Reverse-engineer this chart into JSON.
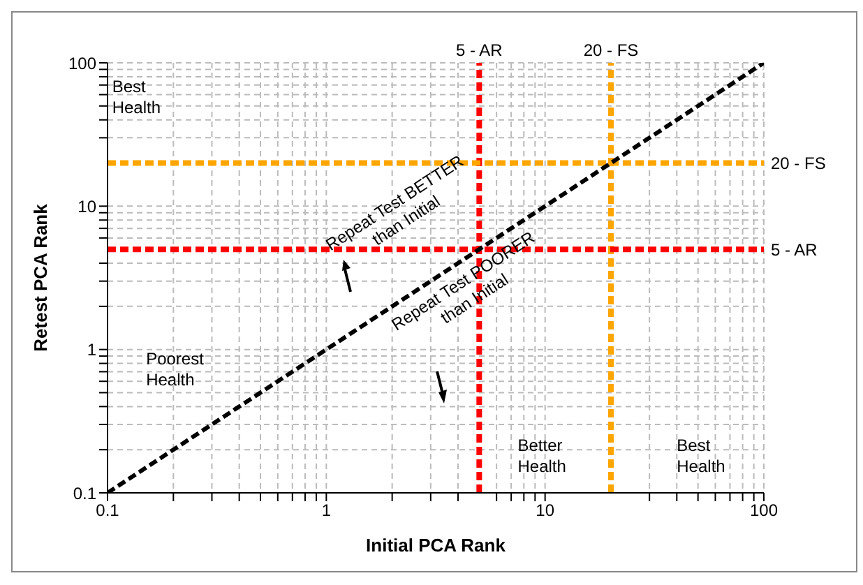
{
  "chart_data": {
    "type": "line",
    "xlabel": "Initial PCA Rank",
    "ylabel": "Retest PCA Rank",
    "log": "xy",
    "grid": true,
    "marker": "none",
    "legend": false,
    "xlim": [
      0.1,
      100
    ],
    "ylim": [
      0.1,
      100
    ],
    "xticks": [
      0.1,
      {
        "value": 0.2,
        "label": null
      },
      {
        "value": 0.3,
        "label": null
      },
      {
        "value": 0.4,
        "label": null
      },
      {
        "value": 0.5,
        "label": null
      },
      {
        "value": 0.6,
        "label": null
      },
      {
        "value": 0.7,
        "label": null
      },
      {
        "value": 0.8,
        "label": null
      },
      {
        "value": 0.9,
        "label": null
      },
      1,
      {
        "value": 2,
        "label": null
      },
      {
        "value": 3,
        "label": null
      },
      {
        "value": 4,
        "label": null
      },
      {
        "value": 6,
        "label": null
      },
      {
        "value": 7,
        "label": null
      },
      {
        "value": 8,
        "label": null
      },
      {
        "value": 9,
        "label": null
      },
      10,
      {
        "value": 30,
        "label": null
      },
      {
        "value": 40,
        "label": null
      },
      {
        "value": 50,
        "label": null
      },
      {
        "value": 60,
        "label": null
      },
      {
        "value": 70,
        "label": null
      },
      {
        "value": 80,
        "label": null
      },
      {
        "value": 90,
        "label": null
      },
      100
    ],
    "yticks": [
      0.1,
      {
        "value": 0.2,
        "label": null
      },
      {
        "value": 0.3,
        "label": null
      },
      {
        "value": 0.4,
        "label": null
      },
      {
        "value": 0.5,
        "label": null
      },
      {
        "value": 0.6,
        "label": null
      },
      {
        "value": 0.7,
        "label": null
      },
      {
        "value": 0.8,
        "label": null
      },
      {
        "value": 0.9,
        "label": null
      },
      1,
      {
        "value": 2,
        "label": null
      },
      {
        "value": 3,
        "label": null
      },
      {
        "value": 4,
        "label": null
      },
      {
        "value": 6,
        "label": null
      },
      {
        "value": 7,
        "label": null
      },
      {
        "value": 8,
        "label": null
      },
      {
        "value": 9,
        "label": null
      },
      10,
      {
        "value": 30,
        "label": null
      },
      {
        "value": 40,
        "label": null
      },
      {
        "value": 50,
        "label": null
      },
      {
        "value": 60,
        "label": null
      },
      {
        "value": 70,
        "label": null
      },
      {
        "value": 80,
        "label": null
      },
      {
        "value": 90,
        "label": null
      },
      100
    ],
    "series": [
      {
        "type": "line",
        "color": "#000000",
        "line_style": "dashed",
        "x": [
          0.1,
          100
        ],
        "values": [
          0.1,
          100
        ]
      }
    ],
    "ref_lines": [
      {
        "axis": "x",
        "value": 5,
        "label": "5 - AR",
        "color": "#ff0000",
        "line_style": "dashed"
      },
      {
        "axis": "x",
        "value": 20,
        "label": "20 - FS",
        "color": "#ffa500",
        "line_style": "dashed"
      },
      {
        "axis": "y",
        "value": 20,
        "label": "20 - FS",
        "color": "#ffa500",
        "line_style": "dashed"
      },
      {
        "axis": "y",
        "value": 5,
        "label": "5 - AR",
        "color": "#ff0000",
        "line_style": "dashed"
      }
    ],
    "annotations": [
      "Best Health",
      "Poorest Health",
      "Better Health",
      "Best Health",
      "Repeat Test BETTER than Initial",
      "Repeat Test POORER than Initial"
    ]
  }
}
